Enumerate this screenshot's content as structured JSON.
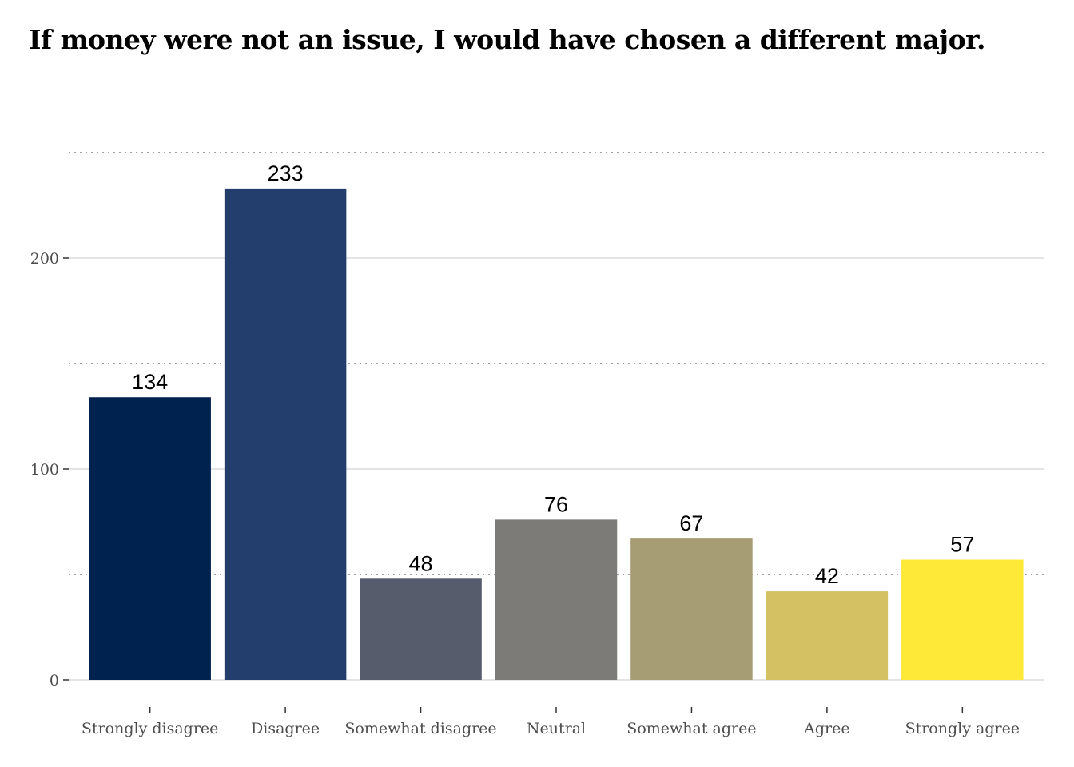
{
  "chart_data": {
    "type": "bar",
    "title": "If money were not an issue, I would have chosen a different major.",
    "xlabel": "",
    "ylabel": "",
    "categories": [
      "Strongly disagree",
      "Disagree",
      "Somewhat disagree",
      "Neutral",
      "Somewhat agree",
      "Agree",
      "Strongly agree"
    ],
    "values": [
      134,
      233,
      48,
      76,
      67,
      42,
      57
    ],
    "colors": [
      "#00224e",
      "#233e6c",
      "#575c6d",
      "#7c7b78",
      "#a69d75",
      "#d3c164",
      "#fee838"
    ],
    "ylim": [
      0,
      250
    ],
    "yticks": [
      0,
      100,
      200
    ],
    "y_major_gridlines": [
      0,
      100,
      200
    ],
    "y_minor_gridlines_dotted": [
      50,
      150,
      250
    ],
    "grid": true,
    "legend": "none"
  }
}
